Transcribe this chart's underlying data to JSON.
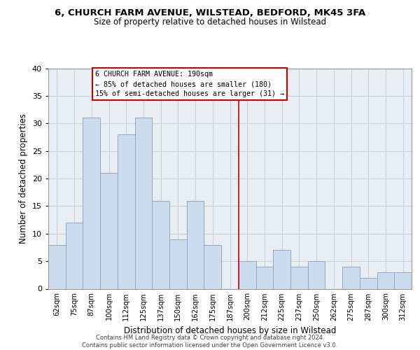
{
  "title1": "6, CHURCH FARM AVENUE, WILSTEAD, BEDFORD, MK45 3FA",
  "title2": "Size of property relative to detached houses in Wilstead",
  "xlabel": "Distribution of detached houses by size in Wilstead",
  "ylabel": "Number of detached properties",
  "bar_labels": [
    "62sqm",
    "75sqm",
    "87sqm",
    "100sqm",
    "112sqm",
    "125sqm",
    "137sqm",
    "150sqm",
    "162sqm",
    "175sqm",
    "187sqm",
    "200sqm",
    "212sqm",
    "225sqm",
    "237sqm",
    "250sqm",
    "262sqm",
    "275sqm",
    "287sqm",
    "300sqm",
    "312sqm"
  ],
  "bar_heights": [
    8,
    12,
    31,
    21,
    28,
    31,
    16,
    9,
    16,
    8,
    0,
    5,
    4,
    7,
    4,
    5,
    0,
    4,
    2,
    3,
    3
  ],
  "bar_color": "#ccdcec",
  "bar_edge_color": "#90a8c0",
  "vline_color": "#cc0000",
  "annotation_title": "6 CHURCH FARM AVENUE: 190sqm",
  "annotation_line1": "← 85% of detached houses are smaller (180)",
  "annotation_line2": "15% of semi-detached houses are larger (31) →",
  "annotation_box_color": "#cc0000",
  "ylim": [
    0,
    40
  ],
  "yticks": [
    0,
    5,
    10,
    15,
    20,
    25,
    30,
    35,
    40
  ],
  "footnote1": "Contains HM Land Registry data © Crown copyright and database right 2024.",
  "footnote2": "Contains public sector information licensed under the Open Government Licence v3.0.",
  "bg_color": "#e8eef4",
  "grid_color": "#c8d0da"
}
